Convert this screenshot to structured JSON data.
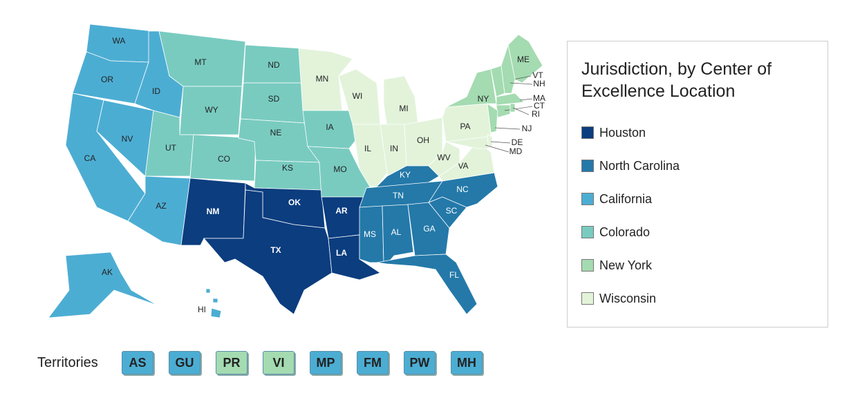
{
  "legend": {
    "title": "Jurisdiction, by Center of Excellence Location",
    "items": [
      {
        "name": "Houston",
        "color": "#0b3d7f"
      },
      {
        "name": "North Carolina",
        "color": "#2479a9"
      },
      {
        "name": "California",
        "color": "#4cadd3"
      },
      {
        "name": "Colorado",
        "color": "#79cbc0"
      },
      {
        "name": "New York",
        "color": "#a4dbb1"
      },
      {
        "name": "Wisconsin",
        "color": "#e2f3da"
      }
    ]
  },
  "states": [
    {
      "code": "WA",
      "jurisdiction": "California"
    },
    {
      "code": "OR",
      "jurisdiction": "California"
    },
    {
      "code": "CA",
      "jurisdiction": "California"
    },
    {
      "code": "NV",
      "jurisdiction": "California"
    },
    {
      "code": "ID",
      "jurisdiction": "California"
    },
    {
      "code": "MT",
      "jurisdiction": "Colorado"
    },
    {
      "code": "WY",
      "jurisdiction": "Colorado"
    },
    {
      "code": "UT",
      "jurisdiction": "Colorado"
    },
    {
      "code": "CO",
      "jurisdiction": "Colorado"
    },
    {
      "code": "AZ",
      "jurisdiction": "California"
    },
    {
      "code": "NM",
      "jurisdiction": "Houston"
    },
    {
      "code": "ND",
      "jurisdiction": "Colorado"
    },
    {
      "code": "SD",
      "jurisdiction": "Colorado"
    },
    {
      "code": "NE",
      "jurisdiction": "Colorado"
    },
    {
      "code": "KS",
      "jurisdiction": "Colorado"
    },
    {
      "code": "OK",
      "jurisdiction": "Houston"
    },
    {
      "code": "TX",
      "jurisdiction": "Houston"
    },
    {
      "code": "MN",
      "jurisdiction": "Wisconsin"
    },
    {
      "code": "IA",
      "jurisdiction": "Colorado"
    },
    {
      "code": "MO",
      "jurisdiction": "Colorado"
    },
    {
      "code": "AR",
      "jurisdiction": "Houston"
    },
    {
      "code": "LA",
      "jurisdiction": "Houston"
    },
    {
      "code": "WI",
      "jurisdiction": "Wisconsin"
    },
    {
      "code": "IL",
      "jurisdiction": "Wisconsin"
    },
    {
      "code": "MI",
      "jurisdiction": "Wisconsin"
    },
    {
      "code": "IN",
      "jurisdiction": "Wisconsin"
    },
    {
      "code": "OH",
      "jurisdiction": "Wisconsin"
    },
    {
      "code": "KY",
      "jurisdiction": "North Carolina"
    },
    {
      "code": "TN",
      "jurisdiction": "North Carolina"
    },
    {
      "code": "MS",
      "jurisdiction": "North Carolina"
    },
    {
      "code": "AL",
      "jurisdiction": "North Carolina"
    },
    {
      "code": "GA",
      "jurisdiction": "North Carolina"
    },
    {
      "code": "FL",
      "jurisdiction": "North Carolina"
    },
    {
      "code": "SC",
      "jurisdiction": "North Carolina"
    },
    {
      "code": "NC",
      "jurisdiction": "North Carolina"
    },
    {
      "code": "VA",
      "jurisdiction": "Wisconsin"
    },
    {
      "code": "WV",
      "jurisdiction": "Wisconsin"
    },
    {
      "code": "PA",
      "jurisdiction": "Wisconsin"
    },
    {
      "code": "NY",
      "jurisdiction": "New York"
    },
    {
      "code": "ME",
      "jurisdiction": "New York"
    },
    {
      "code": "VT",
      "jurisdiction": "New York"
    },
    {
      "code": "NH",
      "jurisdiction": "New York"
    },
    {
      "code": "MA",
      "jurisdiction": "New York"
    },
    {
      "code": "CT",
      "jurisdiction": "New York"
    },
    {
      "code": "RI",
      "jurisdiction": "New York"
    },
    {
      "code": "NJ",
      "jurisdiction": "New York"
    },
    {
      "code": "DE",
      "jurisdiction": "Wisconsin"
    },
    {
      "code": "MD",
      "jurisdiction": "Wisconsin"
    },
    {
      "code": "AK",
      "jurisdiction": "California"
    },
    {
      "code": "HI",
      "jurisdiction": "California"
    }
  ],
  "territories": {
    "label": "Territories",
    "items": [
      {
        "code": "AS",
        "jurisdiction": "California"
      },
      {
        "code": "GU",
        "jurisdiction": "California"
      },
      {
        "code": "PR",
        "jurisdiction": "New York"
      },
      {
        "code": "VI",
        "jurisdiction": "New York"
      },
      {
        "code": "MP",
        "jurisdiction": "California"
      },
      {
        "code": "FM",
        "jurisdiction": "California"
      },
      {
        "code": "PW",
        "jurisdiction": "California"
      },
      {
        "code": "MH",
        "jurisdiction": "California"
      }
    ]
  }
}
